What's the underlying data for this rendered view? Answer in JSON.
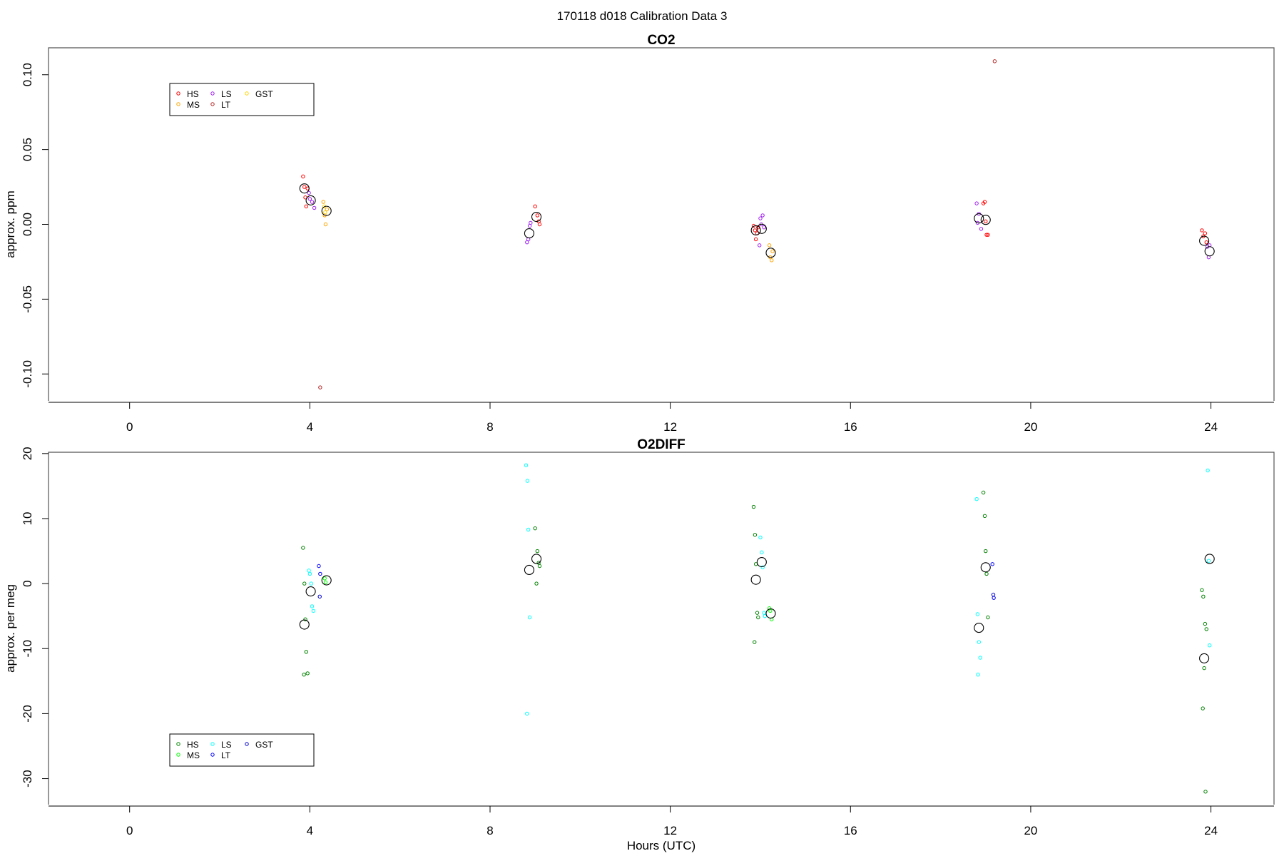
{
  "page": {
    "title": "170118   d018   Calibration Data 3"
  },
  "chart_data": [
    {
      "type": "scatter",
      "title": "CO2",
      "xlabel": "",
      "ylabel": "approx. ppm",
      "xlim": [
        -1.8,
        25.4
      ],
      "ylim": [
        -0.118,
        0.118
      ],
      "xticks": [
        0,
        4,
        8,
        12,
        16,
        20,
        24
      ],
      "xtick_labels": [
        "0",
        "4",
        "8",
        "12",
        "16",
        "20",
        "24"
      ],
      "yticks": [
        -0.1,
        -0.05,
        0.0,
        0.05,
        0.1
      ],
      "ytick_labels": [
        "-0.10",
        "-0.05",
        "0.00",
        "0.05",
        "0.10"
      ],
      "legend": {
        "position": "top-left",
        "entries": [
          {
            "name": "HS",
            "color": "#ff0000"
          },
          {
            "name": "MS",
            "color": "#ffa500"
          },
          {
            "name": "LS",
            "color": "#a020f0"
          },
          {
            "name": "LT",
            "color": "#b22222"
          },
          {
            "name": "GST",
            "color": "#ffd700"
          }
        ]
      },
      "series": [
        {
          "name": "HS",
          "color": "#ff0000",
          "x": [
            3.85,
            3.88,
            3.9,
            3.92,
            3.95,
            9.0,
            9.05,
            9.08,
            9.1,
            13.85,
            13.88,
            13.9,
            13.93,
            13.95,
            18.95,
            18.98,
            19.0,
            19.02,
            19.05,
            23.8,
            23.83,
            23.87,
            23.9
          ],
          "y": [
            0.032,
            0.025,
            0.018,
            0.012,
            0.024,
            0.012,
            0.006,
            0.002,
            0.0,
            -0.001,
            -0.004,
            -0.01,
            -0.006,
            -0.002,
            0.014,
            0.015,
            0.002,
            -0.007,
            -0.007,
            -0.004,
            -0.008,
            -0.006,
            -0.012
          ]
        },
        {
          "name": "MS",
          "color": "#ffa500",
          "x": [
            4.3,
            4.33,
            4.35,
            4.38,
            14.2,
            14.22,
            14.25,
            14.27
          ],
          "y": [
            0.015,
            0.006,
            0.0,
            0.01,
            -0.014,
            -0.022,
            -0.024,
            -0.018
          ]
        },
        {
          "name": "LS",
          "color": "#a020f0",
          "x": [
            3.98,
            4.0,
            4.05,
            4.1,
            8.82,
            8.85,
            8.88,
            8.9,
            14.0,
            14.02,
            14.05,
            14.08,
            13.98,
            18.8,
            18.82,
            18.85,
            18.9,
            23.92,
            23.95,
            23.97
          ],
          "y": [
            0.021,
            0.017,
            0.015,
            0.011,
            -0.012,
            -0.01,
            -0.001,
            0.001,
            0.004,
            0.0,
            0.006,
            -0.002,
            -0.014,
            0.014,
            0.001,
            0.007,
            -0.003,
            -0.015,
            -0.022,
            -0.014
          ]
        },
        {
          "name": "LT",
          "color": "#b22222",
          "x": [
            4.23,
            19.2
          ],
          "y": [
            -0.109,
            0.109
          ]
        },
        {
          "name": "GST",
          "color": "#ffd700",
          "x": [
            4.32,
            4.34
          ],
          "y": [
            0.012,
            0.008
          ]
        },
        {
          "name": "mean",
          "color": "#000000",
          "x": [
            3.88,
            4.02,
            4.37,
            8.87,
            9.03,
            13.9,
            14.03,
            14.23,
            18.85,
            19.0,
            23.85,
            23.97
          ],
          "y": [
            0.024,
            0.016,
            0.009,
            -0.006,
            0.005,
            -0.004,
            -0.003,
            -0.019,
            0.004,
            0.003,
            -0.011,
            -0.018
          ]
        }
      ]
    },
    {
      "type": "scatter",
      "title": "O2DIFF",
      "xlabel": "Hours (UTC)",
      "ylabel": "approx. per meg",
      "xlim": [
        -1.8,
        25.4
      ],
      "ylim": [
        -34.0,
        20.2
      ],
      "xticks": [
        0,
        4,
        8,
        12,
        16,
        20,
        24
      ],
      "xtick_labels": [
        "0",
        "4",
        "8",
        "12",
        "16",
        "20",
        "24"
      ],
      "yticks": [
        -30,
        -20,
        -10,
        0,
        10,
        20
      ],
      "ytick_labels": [
        "-30",
        "-20",
        "-10",
        "0",
        "10",
        "20"
      ],
      "legend": {
        "position": "bottom-left",
        "entries": [
          {
            "name": "HS",
            "color": "#008000"
          },
          {
            "name": "MS",
            "color": "#00ff00"
          },
          {
            "name": "LS",
            "color": "#00ffff"
          },
          {
            "name": "LT",
            "color": "#0000ff"
          },
          {
            "name": "GST",
            "color": "#0000cd"
          }
        ]
      },
      "series": [
        {
          "name": "HS",
          "color": "#008000",
          "x": [
            3.85,
            3.88,
            3.9,
            3.92,
            3.95,
            3.87,
            9.0,
            9.05,
            9.08,
            9.1,
            9.03,
            13.85,
            13.88,
            13.9,
            13.93,
            13.95,
            13.87,
            18.95,
            18.98,
            19.0,
            19.02,
            19.05,
            23.8,
            23.83,
            23.87,
            23.9,
            23.85,
            23.82,
            23.88
          ],
          "y": [
            5.5,
            0.0,
            -5.5,
            -10.5,
            -13.8,
            -14.0,
            8.5,
            5.0,
            3.2,
            2.7,
            0.0,
            11.8,
            7.5,
            3.0,
            -4.5,
            -5.2,
            -9.0,
            14.0,
            10.4,
            5.0,
            1.5,
            -5.2,
            -1.0,
            -2.0,
            -6.2,
            -7.0,
            -13.0,
            -19.2,
            -32.0
          ]
        },
        {
          "name": "MS",
          "color": "#00ff00",
          "x": [
            4.33,
            4.35,
            14.2,
            14.25,
            14.22
          ],
          "y": [
            0.8,
            0.2,
            -3.8,
            -5.5,
            -4.2
          ]
        },
        {
          "name": "LS",
          "color": "#00ffff",
          "x": [
            3.98,
            4.0,
            4.03,
            4.05,
            4.08,
            8.8,
            8.83,
            8.85,
            8.88,
            8.82,
            14.0,
            14.03,
            14.05,
            14.08,
            14.1,
            18.8,
            18.82,
            18.85,
            18.88,
            18.83,
            23.93,
            23.95,
            23.97
          ],
          "y": [
            2.0,
            1.5,
            0.0,
            -3.5,
            -4.2,
            18.2,
            15.8,
            8.3,
            -5.2,
            -20.0,
            7.1,
            4.8,
            2.5,
            -4.5,
            -5.0,
            13.0,
            -4.7,
            -9.0,
            -11.4,
            -14.0,
            17.4,
            3.5,
            -9.5
          ]
        },
        {
          "name": "LT",
          "color": "#0000ff",
          "x": [
            4.2,
            4.23,
            19.15,
            19.18
          ],
          "y": [
            2.7,
            1.5,
            3.0,
            -2.2
          ]
        },
        {
          "name": "GST",
          "color": "#0000cd",
          "x": [
            4.22,
            19.17
          ],
          "y": [
            -2.0,
            -1.7
          ]
        },
        {
          "name": "mean",
          "color": "#000000",
          "x": [
            3.88,
            4.02,
            4.37,
            8.87,
            9.03,
            13.9,
            14.03,
            14.23,
            18.85,
            19.0,
            23.85,
            23.97
          ],
          "y": [
            -6.3,
            -1.2,
            0.5,
            2.1,
            3.8,
            0.6,
            3.3,
            -4.6,
            -6.8,
            2.5,
            -11.5,
            3.8
          ]
        }
      ]
    }
  ]
}
